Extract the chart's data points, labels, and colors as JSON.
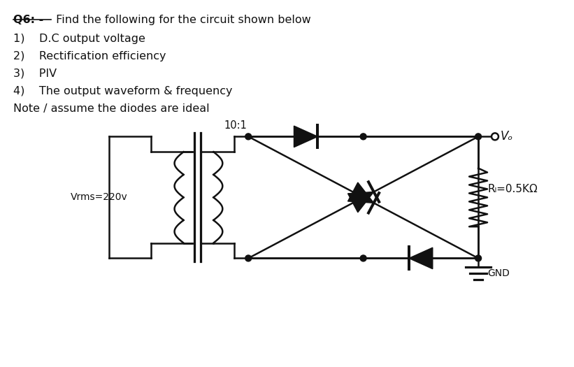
{
  "title_bold": "Q6: -",
  "title_rest": " Find the following for the circuit shown below",
  "items": [
    "1)    D.C output voltage",
    "2)    Rectification efficiency",
    "3)    PIV",
    "4)    The output waveform & frequency"
  ],
  "note": "Note / assume the diodes are ideal",
  "transformer_ratio": "10:1",
  "vrms_label": "Vrms=220v",
  "rl_label": "Rₗ=0.5KΩ",
  "vo_label": "Vₒ",
  "gnd_label": "GND",
  "bg_color": "#ffffff",
  "line_color": "#111111",
  "text_color": "#111111",
  "lw": 1.8
}
